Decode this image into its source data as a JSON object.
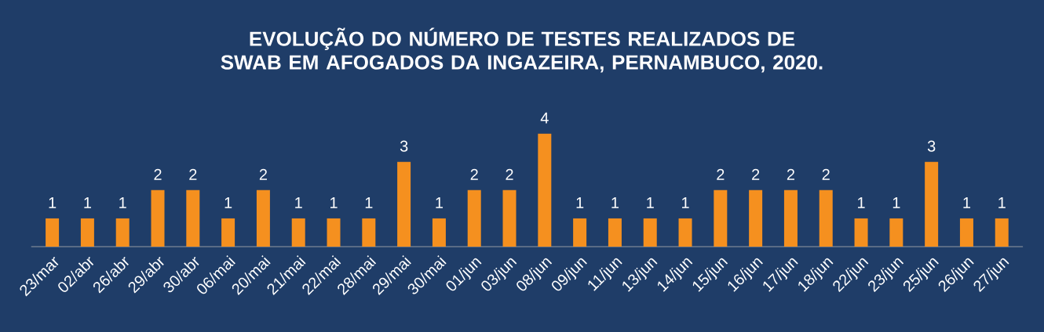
{
  "chart_data": {
    "type": "bar",
    "title": "EVOLUÇÃO DO NÚMERO DE TESTES REALIZADOS DE SWAB EM AFOGADOS DA INGAZEIRA, PERNAMBUCO, 2020.",
    "categories": [
      "23/mar",
      "02/abr",
      "26/abr",
      "29/abr",
      "30/abr",
      "06/mai",
      "20/mai",
      "21/mai",
      "22/mai",
      "28/mai",
      "29/mai",
      "30/mai",
      "01/jun",
      "03/jun",
      "08/jun",
      "09/jun",
      "11/jun",
      "13/jun",
      "14/jun",
      "15/jun",
      "16/jun",
      "17/jun",
      "18/jun",
      "22/jun",
      "23/jun",
      "25/jun",
      "26/jun",
      "27/jun"
    ],
    "values": [
      1,
      1,
      1,
      2,
      2,
      1,
      2,
      1,
      1,
      1,
      3,
      1,
      2,
      2,
      4,
      1,
      1,
      1,
      1,
      2,
      2,
      2,
      2,
      1,
      1,
      3,
      1,
      1
    ],
    "color": "#f5901f",
    "data_labels": true
  }
}
